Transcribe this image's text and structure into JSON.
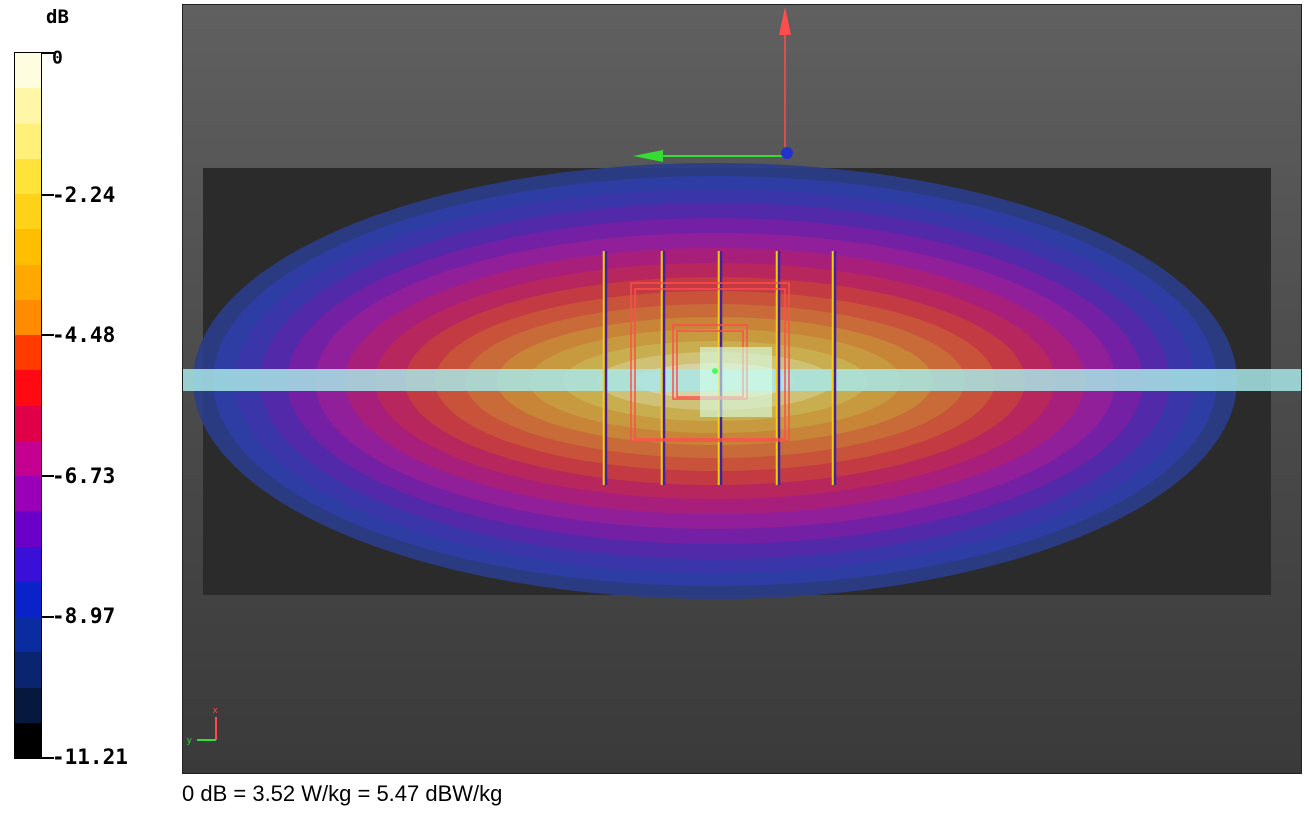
{
  "colorbar": {
    "unit": "dB",
    "ticks": [
      "0",
      "-2.24",
      "-4.48",
      "-6.73",
      "-8.97",
      "-11.21"
    ],
    "colors": [
      "#fffde0",
      "#fff6a8",
      "#fff07a",
      "#ffe33a",
      "#ffd21a",
      "#ffbf00",
      "#ffa800",
      "#ff8c00",
      "#ff3b00",
      "#ff0a12",
      "#e0004a",
      "#c40090",
      "#9a00b8",
      "#6a00c8",
      "#3a10d8",
      "#0a22c8",
      "#0a2ca0",
      "#0a2470",
      "#06183e",
      "#000000"
    ]
  },
  "viewport": {
    "axis_x_color": "#ff4d4d",
    "axis_y_color": "#33dd33",
    "axis_z_color": "#2233cc",
    "triad_labels": {
      "x": "x",
      "y": "y"
    }
  },
  "footer": {
    "text": "0 dB = 3.52 W/kg = 5.47 dBW/kg"
  }
}
